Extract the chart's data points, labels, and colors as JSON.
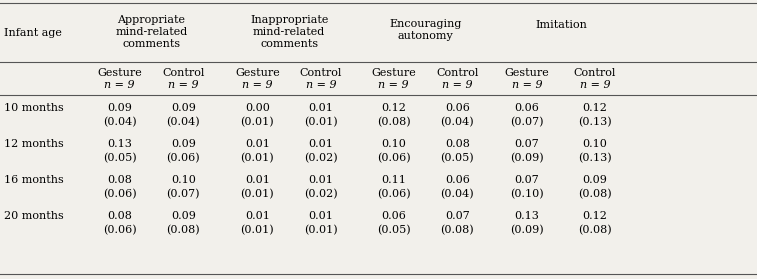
{
  "col_groups": [
    {
      "label": "Appropriate\nmind-related\ncomments"
    },
    {
      "label": "Inappropriate\nmind-related\ncomments"
    },
    {
      "label": "Encouraging\nautonomy"
    },
    {
      "label": "Imitation"
    }
  ],
  "sub_headers": [
    "Gesture",
    "Control",
    "Gesture",
    "Control",
    "Gesture",
    "Control",
    "Gesture",
    "Control"
  ],
  "n_labels": [
    "n = 9",
    "n = 9",
    "n = 9",
    "n = 9",
    "n = 9",
    "n = 9",
    "n = 9",
    "n = 9"
  ],
  "row_labels": [
    "10 months",
    "12 months",
    "16 months",
    "20 months"
  ],
  "data": [
    [
      "0.09",
      "0.09",
      "0.00",
      "0.01",
      "0.12",
      "0.06",
      "0.06",
      "0.12"
    ],
    [
      "(0.04)",
      "(0.04)",
      "(0.01)",
      "(0.01)",
      "(0.08)",
      "(0.04)",
      "(0.07)",
      "(0.13)"
    ],
    [
      "0.13",
      "0.09",
      "0.01",
      "0.01",
      "0.10",
      "0.08",
      "0.07",
      "0.10"
    ],
    [
      "(0.05)",
      "(0.06)",
      "(0.01)",
      "(0.02)",
      "(0.06)",
      "(0.05)",
      "(0.09)",
      "(0.13)"
    ],
    [
      "0.08",
      "0.10",
      "0.01",
      "0.01",
      "0.11",
      "0.06",
      "0.07",
      "0.09"
    ],
    [
      "(0.06)",
      "(0.07)",
      "(0.01)",
      "(0.02)",
      "(0.06)",
      "(0.04)",
      "(0.10)",
      "(0.08)"
    ],
    [
      "0.08",
      "0.09",
      "0.01",
      "0.01",
      "0.06",
      "0.07",
      "0.13",
      "0.12"
    ],
    [
      "(0.06)",
      "(0.08)",
      "(0.01)",
      "(0.01)",
      "(0.05)",
      "(0.08)",
      "(0.09)",
      "(0.08)"
    ]
  ],
  "first_col_label": "Infant age",
  "figsize": [
    7.57,
    2.79
  ],
  "dpi": 100,
  "bg_color": "#f2f0eb",
  "font_size": 8.0,
  "line_color": "#555555",
  "line_width": 0.8
}
